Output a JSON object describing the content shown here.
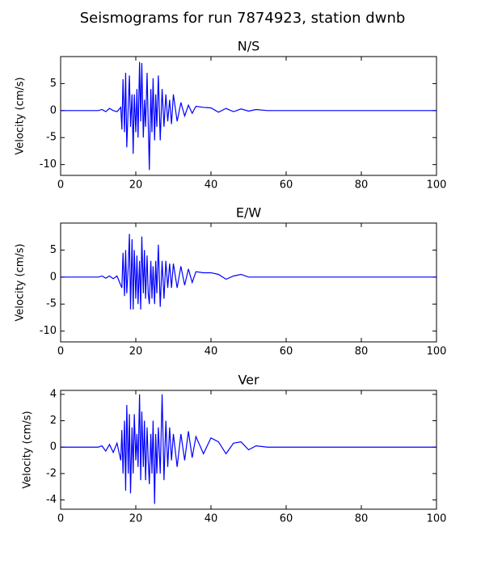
{
  "title": "Seismograms for run 7874923, station dwnb",
  "chart_data": [
    {
      "type": "line",
      "title": "N/S",
      "y_label": "Velocity (cm/s)",
      "x": [
        0,
        10,
        11,
        12,
        13,
        14,
        15,
        16,
        16.3,
        16.6,
        17,
        17.3,
        17.6,
        18,
        18.3,
        18.6,
        19,
        19.3,
        19.6,
        20,
        20.3,
        20.6,
        21,
        21.3,
        21.6,
        22,
        22.3,
        22.6,
        23,
        23.3,
        23.6,
        24,
        24.3,
        24.6,
        25,
        25.3,
        25.6,
        26,
        26.5,
        27,
        27.5,
        28,
        28.5,
        29,
        29.5,
        30,
        31,
        32,
        33,
        34,
        35,
        36,
        38,
        40,
        42,
        44,
        46,
        48,
        50,
        52,
        55,
        100
      ],
      "series": [
        {
          "color": "#0000ff",
          "values": [
            0,
            0,
            0.2,
            -0.2,
            0.4,
            0,
            -0.2,
            0.6,
            -3.5,
            5.8,
            -4,
            7,
            -6.8,
            1,
            6.5,
            -3,
            3,
            -8,
            3,
            -4,
            4,
            -5,
            9,
            -2,
            8.8,
            -5,
            2,
            -3,
            7,
            -2,
            -11,
            4,
            -4,
            6,
            -5.5,
            3,
            -3,
            6.5,
            -5.5,
            4,
            -3,
            3,
            -2,
            2,
            -2.5,
            3,
            -2,
            1.5,
            -1,
            1,
            -0.5,
            0.8,
            0.6,
            0.5,
            -0.3,
            0.4,
            -0.2,
            0.3,
            -0.1,
            0.2,
            0,
            0
          ]
        }
      ],
      "xlim": [
        0,
        100
      ],
      "xticks": [
        0,
        20,
        40,
        60,
        80,
        100
      ],
      "ylim": [
        -12,
        10
      ],
      "yticks": [
        -10,
        -5,
        0,
        5
      ]
    },
    {
      "type": "line",
      "title": "E/W",
      "y_label": "Velocity (cm/s)",
      "x": [
        0,
        10,
        11,
        12,
        13,
        14,
        15,
        16,
        16.3,
        16.6,
        17,
        17.3,
        17.6,
        18,
        18.3,
        18.6,
        19,
        19.3,
        19.6,
        20,
        20.3,
        20.6,
        21,
        21.3,
        21.6,
        22,
        22.3,
        22.6,
        23,
        23.3,
        23.6,
        24,
        24.3,
        24.6,
        25,
        25.3,
        25.6,
        26,
        26.5,
        27,
        27.5,
        28,
        28.5,
        29,
        29.5,
        30,
        31,
        32,
        33,
        34,
        35,
        36,
        38,
        40,
        42,
        44,
        46,
        48,
        50,
        52,
        55,
        100
      ],
      "series": [
        {
          "color": "#0000ff",
          "values": [
            0,
            0,
            0.2,
            -0.2,
            0.2,
            -0.3,
            0.2,
            -1.5,
            -2,
            4.5,
            -3.5,
            5,
            -3,
            2,
            8,
            -6,
            7,
            -6,
            5,
            -4,
            4,
            -5,
            3,
            -6,
            7.5,
            -3,
            5,
            -4,
            4,
            -3,
            -5,
            3,
            -4,
            2,
            -5,
            3,
            -3,
            6,
            -5.5,
            3,
            -4,
            3,
            -2,
            2.5,
            -2,
            2.5,
            -2,
            2,
            -1.5,
            1.5,
            -1,
            1,
            0.8,
            0.8,
            0.5,
            -0.4,
            0.2,
            0.5,
            0,
            0,
            0,
            0
          ]
        }
      ],
      "xlim": [
        0,
        100
      ],
      "xticks": [
        0,
        20,
        40,
        60,
        80,
        100
      ],
      "ylim": [
        -12,
        10
      ],
      "yticks": [
        -10,
        -5,
        0,
        5
      ]
    },
    {
      "type": "line",
      "title": "Ver",
      "y_label": "Velocity (cm/s)",
      "x": [
        0,
        10,
        11,
        12,
        13,
        14,
        15,
        16,
        16.3,
        16.6,
        17,
        17.3,
        17.6,
        18,
        18.3,
        18.6,
        19,
        19.3,
        19.6,
        20,
        20.3,
        20.6,
        21,
        21.3,
        21.6,
        22,
        22.3,
        22.6,
        23,
        23.3,
        23.6,
        24,
        24.3,
        24.6,
        25,
        25.3,
        25.6,
        26,
        26.5,
        27,
        27.5,
        28,
        28.5,
        29,
        29.5,
        30,
        31,
        32,
        33,
        34,
        35,
        36,
        38,
        40,
        42,
        44,
        46,
        48,
        50,
        52,
        55,
        100
      ],
      "series": [
        {
          "color": "#0000ff",
          "values": [
            0,
            0,
            0.1,
            -0.3,
            0.2,
            -0.4,
            0.3,
            -1,
            1.3,
            -2,
            2,
            -3.3,
            3.2,
            -2,
            2.5,
            -3.5,
            1.5,
            -2,
            2.5,
            -1,
            1,
            -1.5,
            4,
            -2.5,
            2.7,
            -1.5,
            2,
            -2.5,
            1.5,
            -1,
            -2.8,
            1,
            -2,
            2,
            -4.3,
            1,
            -2,
            1.5,
            -2,
            4,
            -2.5,
            2,
            -1.5,
            1.5,
            -1,
            1,
            -1.5,
            1,
            -1,
            1.2,
            -0.8,
            0.8,
            -0.5,
            0.7,
            0.4,
            -0.5,
            0.3,
            0.4,
            -0.2,
            0.1,
            0,
            0
          ]
        }
      ],
      "xlim": [
        0,
        100
      ],
      "xticks": [
        0,
        20,
        40,
        60,
        80,
        100
      ],
      "ylim": [
        -4.7,
        4.3
      ],
      "yticks": [
        -4,
        -2,
        0,
        2,
        4
      ]
    }
  ]
}
